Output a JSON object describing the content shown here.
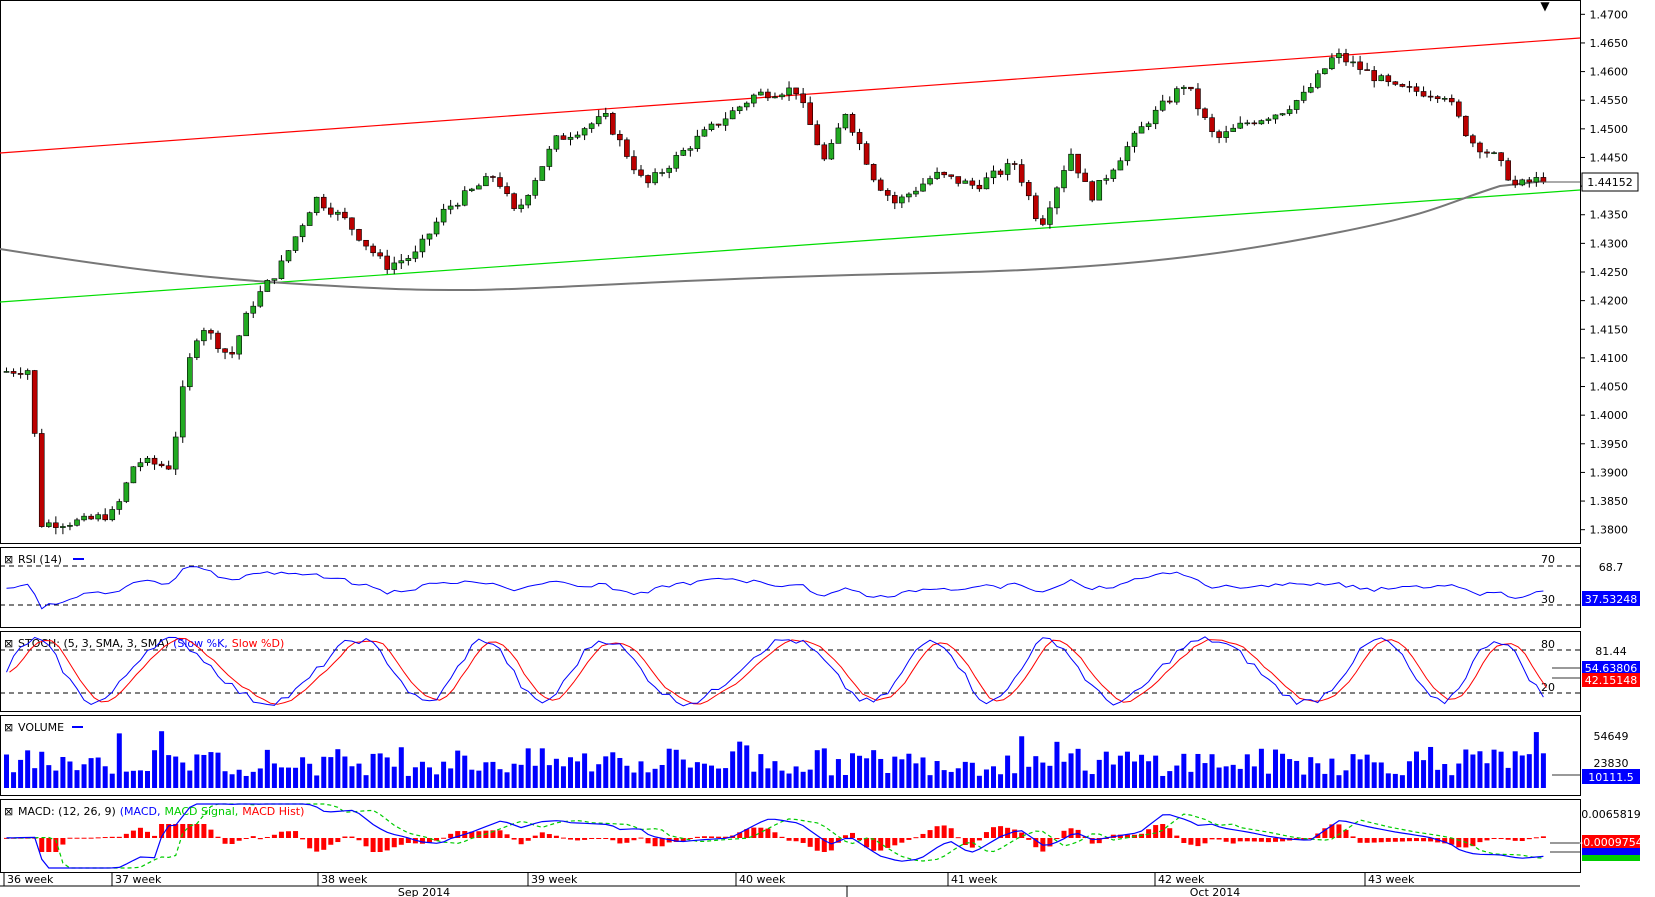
{
  "chart_data": {
    "type": "candlestick",
    "instrument_panel": {
      "price_ticks": [
        "1.4700",
        "1.4650",
        "1.4600",
        "1.4550",
        "1.4500",
        "1.4450",
        "1.4400",
        "1.4350",
        "1.4300",
        "1.4250",
        "1.4200",
        "1.4150",
        "1.4100",
        "1.4050",
        "1.4000",
        "1.3950",
        "1.3900",
        "1.3850",
        "1.3800"
      ],
      "current_price_label": "1.44152",
      "current_price": 1.44152,
      "price_range": [
        1.3775,
        1.4725
      ],
      "trendlines": [
        {
          "color": "#ff0000",
          "from_price": 1.4467,
          "to_price": 1.4673
        },
        {
          "color": "#00dd00",
          "from_price": 1.42,
          "to_price": 1.4401
        }
      ],
      "moving_average_color": "#777777"
    },
    "rsi": {
      "title": "RSI (14)",
      "levels": [
        "70",
        "30"
      ],
      "right_labels": [
        "68.7"
      ],
      "value_label": "37.53248",
      "series_color": "#0000ff"
    },
    "stochastic": {
      "title_prefix": "STOCH: (5, 3, SMA, 3, SMA)",
      "series_k": "(Slow %K,",
      "series_d": "Slow %D)",
      "levels": [
        "80",
        "20"
      ],
      "right_labels": [
        "81.44"
      ],
      "value_k_label": "54.63806",
      "value_d_label": "42.15148",
      "k_color": "#0000ff",
      "d_color": "#ff0000"
    },
    "volume": {
      "title": "VOLUME",
      "right_labels": [
        "54649",
        "23830"
      ],
      "value_label": "10111.5",
      "bar_color": "#0000ff"
    },
    "macd": {
      "title_prefix": "MACD: (12, 26, 9)",
      "series_macd": "(MACD,",
      "series_signal": "MACD Signal,",
      "series_hist": "MACD Hist)",
      "right_labels": [
        "0.0065819"
      ],
      "value_label": "-0.0009754",
      "macd_color": "#0000ff",
      "signal_color": "#00cc00",
      "hist_color": "#ff0000"
    },
    "x_axis": {
      "weeks": [
        "36 week",
        "37 week",
        "38 week",
        "39 week",
        "40 week",
        "41 week",
        "42 week",
        "43 week"
      ],
      "months": [
        "Sep 2014",
        "Oct 2014"
      ]
    }
  }
}
